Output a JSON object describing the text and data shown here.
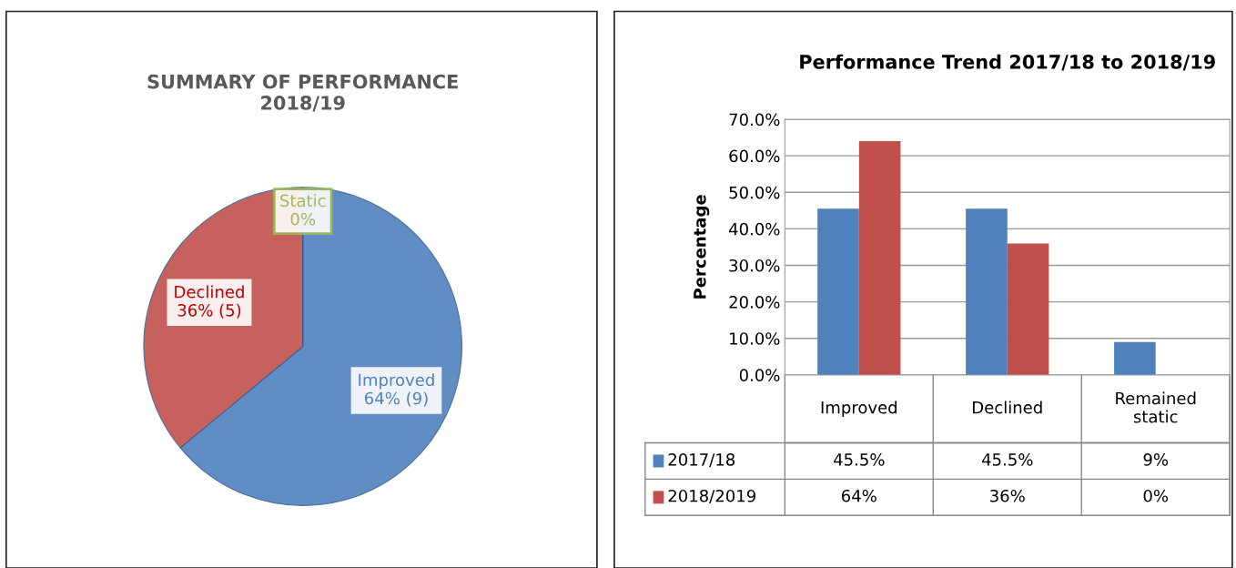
{
  "chart_data": [
    {
      "type": "pie",
      "title": "SUMMARY OF PERFORMANCE\n2018/19",
      "categories": [
        "Improved",
        "Declined",
        "Static"
      ],
      "values": [
        64,
        36,
        0
      ],
      "value_labels": [
        "64% (9)",
        "36% (5)",
        "0%"
      ],
      "colors": [
        "#4f81bd",
        "#c0504d",
        "#9bbb59"
      ],
      "legend": false
    },
    {
      "type": "bar",
      "title": "Performance Trend 2017/18 to 2018/19",
      "ylabel": "Percentage",
      "categories": [
        "Improved",
        "Declined",
        "Remained\nstatic"
      ],
      "series": [
        {
          "name": "2017/18",
          "color": "#4f81bd",
          "values": [
            45.5,
            45.5,
            9
          ],
          "value_labels": [
            "45.5%",
            "45.5%",
            "9%"
          ]
        },
        {
          "name": "2018/2019",
          "color": "#c0504d",
          "values": [
            64,
            36,
            0
          ],
          "value_labels": [
            "64%",
            "36%",
            "0%"
          ]
        }
      ],
      "ylim": [
        0,
        70
      ],
      "yticks": [
        {
          "value": 0,
          "label": "0.0%"
        },
        {
          "value": 10,
          "label": "10.0%"
        },
        {
          "value": 20,
          "label": "20.0%"
        },
        {
          "value": 30,
          "label": "30.0%"
        },
        {
          "value": 40,
          "label": "40.0%"
        },
        {
          "value": 50,
          "label": "50.0%"
        },
        {
          "value": 60,
          "label": "60.0%"
        },
        {
          "value": 70,
          "label": "70.0%"
        }
      ],
      "grid": "y",
      "legend": "bottom"
    }
  ]
}
